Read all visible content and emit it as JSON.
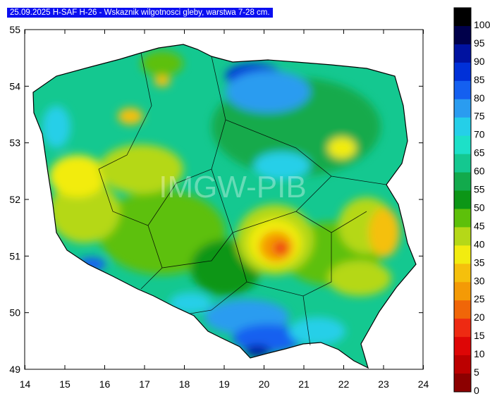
{
  "title": "25.09.2025 H-SAF H-26 - Wskaznik wilgotnosci gleby, warstwa 7-28 cm.",
  "watermark": "IMGW-PIB",
  "x_ticks": [
    "14",
    "15",
    "16",
    "17",
    "18",
    "19",
    "20",
    "21",
    "22",
    "23",
    "24"
  ],
  "y_ticks": [
    "55",
    "54",
    "53",
    "52",
    "51",
    "50",
    "49"
  ],
  "legend": {
    "labels": [
      "100",
      "95",
      "90",
      "85",
      "80",
      "75",
      "70",
      "65",
      "60",
      "55",
      "50",
      "45",
      "40",
      "35",
      "30",
      "25",
      "20",
      "15",
      "10",
      "5",
      "0"
    ],
    "colors": [
      "#000000",
      "#00004a",
      "#0012a0",
      "#0030d8",
      "#1460f0",
      "#2a9cf0",
      "#25cfe8",
      "#1de0c8",
      "#14c890",
      "#12aa4c",
      "#0c9616",
      "#5dc00a",
      "#b5d818",
      "#f2ec10",
      "#f5c00c",
      "#f49a06",
      "#f06608",
      "#ee2a12",
      "#de0606",
      "#bc0000",
      "#8c0000"
    ]
  },
  "chart_data": {
    "type": "heatmap",
    "title": "25.09.2025 H-SAF H-26 - Wskaznik wilgotnosci gleby, warstwa 7-28 cm.",
    "xlabel": "",
    "ylabel": "",
    "xlim": [
      14,
      24
    ],
    "ylim": [
      49,
      55
    ],
    "legend_position": "right",
    "scale_min": 0,
    "scale_max": 100
  }
}
